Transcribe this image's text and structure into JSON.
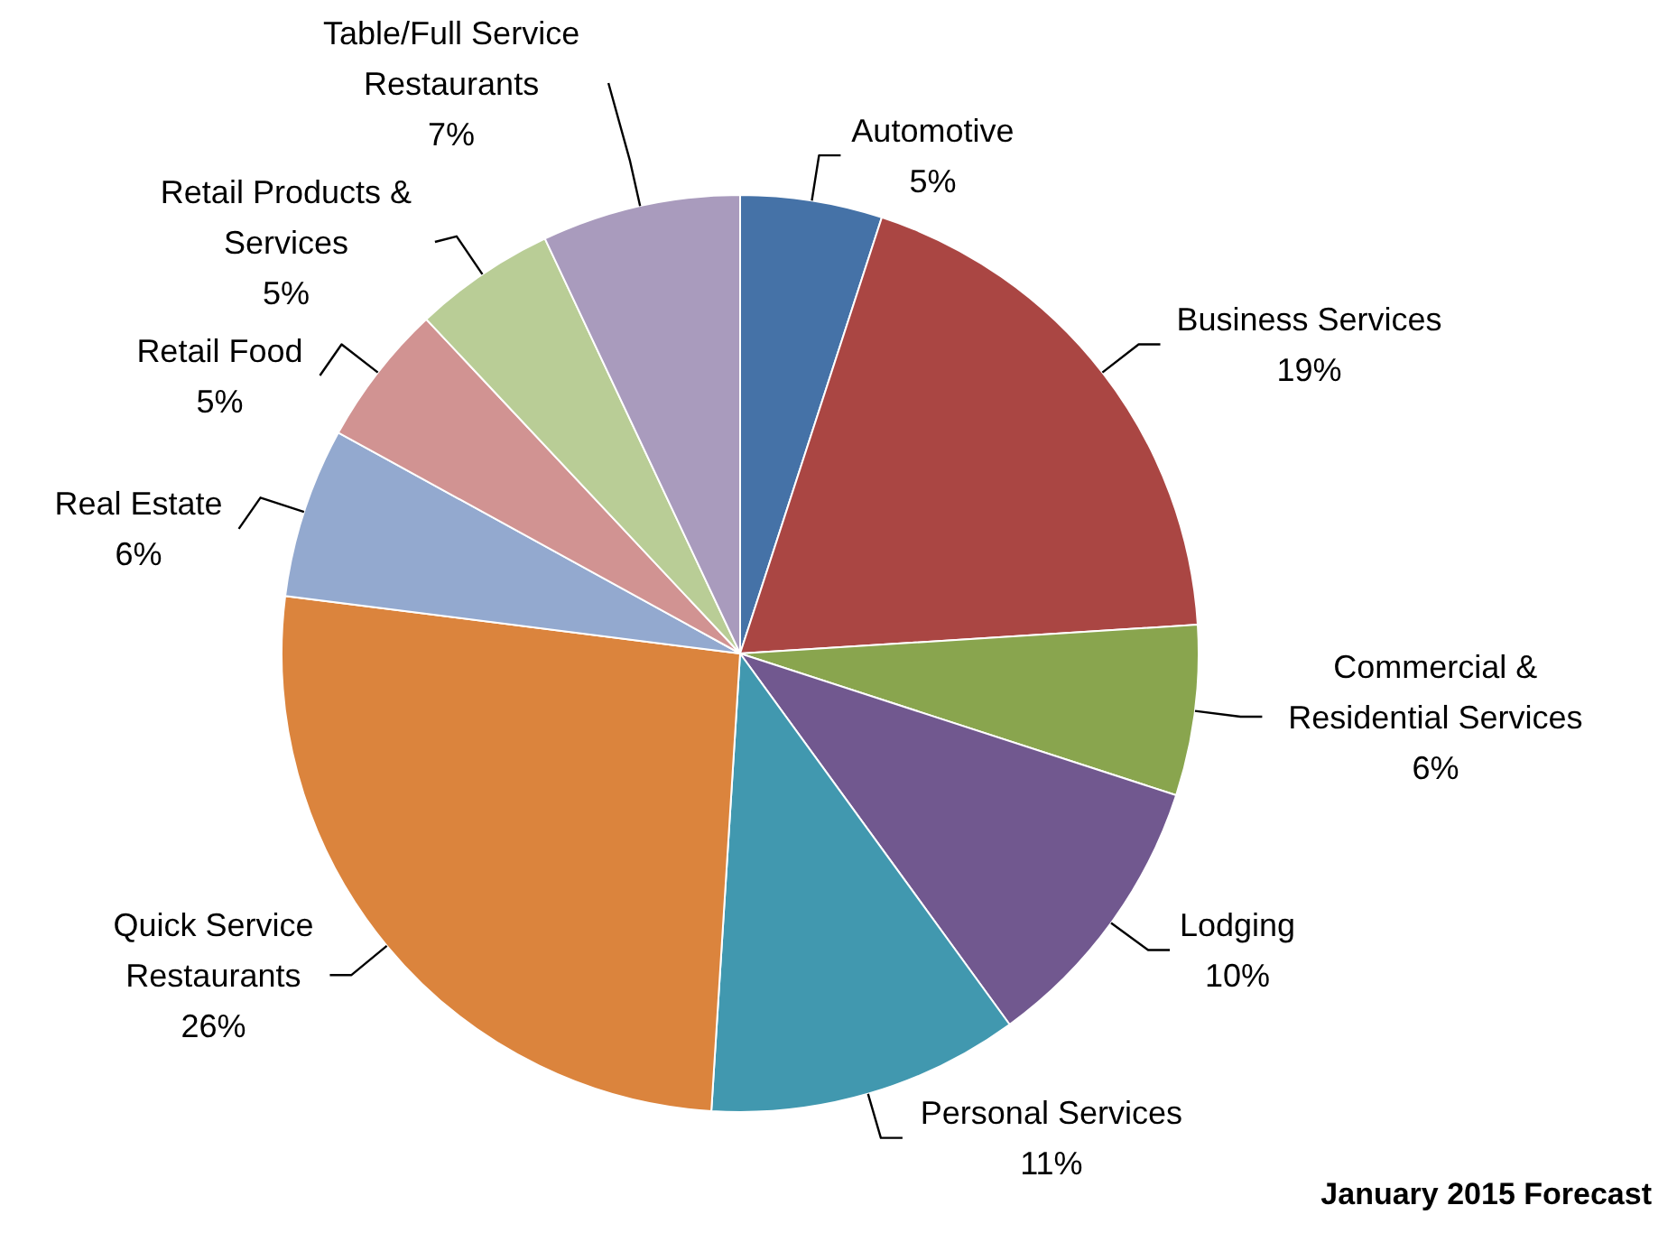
{
  "chart_data": {
    "type": "pie",
    "categories": [
      "Automotive",
      "Business Services",
      "Commercial & Residential Services",
      "Lodging",
      "Personal Services",
      "Quick Service Restaurants",
      "Real Estate",
      "Retail Food",
      "Retail Products & Services",
      "Table/Full Service Restaurants"
    ],
    "values": [
      5,
      19,
      6,
      10,
      11,
      26,
      6,
      5,
      5,
      7
    ],
    "value_labels": [
      "5%",
      "19%",
      "6%",
      "10%",
      "11%",
      "26%",
      "6%",
      "5%",
      "5%",
      "7%"
    ],
    "colors": [
      "#4572a7",
      "#aa4643",
      "#89a54e",
      "#71588f",
      "#4198af",
      "#db843d",
      "#93a9cf",
      "#d19392",
      "#b9cd96",
      "#a99bbd"
    ],
    "annotations": [
      "January 2015 Forecast"
    ]
  }
}
